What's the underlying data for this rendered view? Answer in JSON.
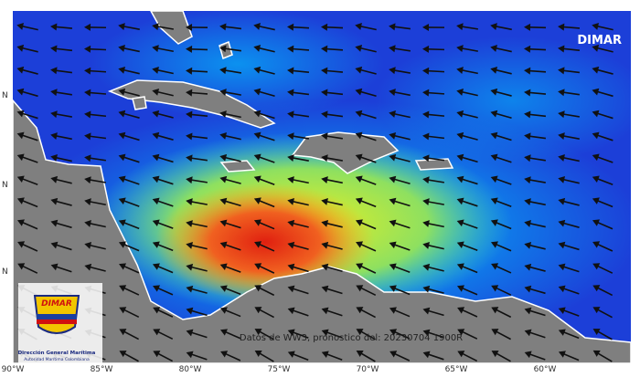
{
  "watermark": "DIMAR",
  "caption": "Datos de WW3, pronostico del: 20230704 1900R",
  "logo": {
    "mark": "DIMAR",
    "org": "Dirección General Marítima",
    "sub": "Autoridad Marítima Colombiana"
  },
  "longitude_labels": [
    "90°W",
    "85°W",
    "80°W",
    "75°W",
    "70°W",
    "65°W",
    "60°W"
  ],
  "latitude_labels": [
    "N",
    "N",
    "N"
  ]
}
